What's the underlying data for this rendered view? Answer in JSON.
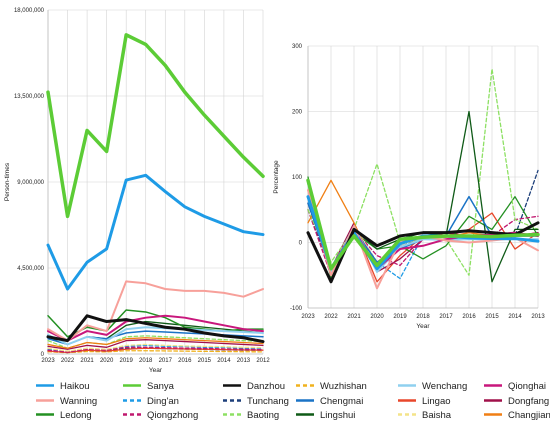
{
  "chart_data": [
    {
      "type": "line",
      "xlabel": "Year",
      "ylabel": "Person-times",
      "x": [
        "2023",
        "2022",
        "2021",
        "2020",
        "2019",
        "2018",
        "2017",
        "2016",
        "2015",
        "2014",
        "2013",
        "2012"
      ],
      "ylim": [
        0,
        18000000
      ],
      "yticks": [
        0,
        4500000,
        9000000,
        13500000,
        18000000
      ],
      "ytick_labels": [
        "0",
        "4,500,000",
        "9,000,000",
        "13,500,000",
        "18,000,000"
      ],
      "grid": true,
      "series": [
        {
          "name": "Haikou",
          "color": "#1e9be6",
          "dash": "solid",
          "width": 3,
          "values": [
            5700000,
            3400000,
            4800000,
            5500000,
            9100000,
            9350000,
            8500000,
            7700000,
            7200000,
            6800000,
            6400000,
            6250000
          ]
        },
        {
          "name": "Sanya",
          "color": "#5ccc36",
          "dash": "solid",
          "width": 3.5,
          "values": [
            13700000,
            7200000,
            11700000,
            10600000,
            16700000,
            16200000,
            15100000,
            13700000,
            12500000,
            11400000,
            10300000,
            9300000
          ]
        },
        {
          "name": "Danzhou",
          "color": "#111111",
          "dash": "solid",
          "width": 3,
          "values": [
            900000,
            700000,
            2000000,
            1700000,
            1800000,
            1600000,
            1400000,
            1300000,
            1100000,
            950000,
            850000,
            650000
          ]
        },
        {
          "name": "Wuzhishan",
          "color": "#f0b21e",
          "dash": "dash",
          "width": 1.3,
          "values": [
            120000,
            70000,
            130000,
            110000,
            170000,
            170000,
            160000,
            150000,
            140000,
            130000,
            120000,
            110000
          ]
        },
        {
          "name": "Wenchang",
          "color": "#8fd0ef",
          "dash": "solid",
          "width": 2,
          "values": [
            1000000,
            500000,
            900000,
            700000,
            1300000,
            1400000,
            1350000,
            1300000,
            1250000,
            1200000,
            1150000,
            1100000
          ]
        },
        {
          "name": "Qionghai",
          "color": "#c8177c",
          "dash": "solid",
          "width": 2,
          "values": [
            1200000,
            700000,
            1200000,
            1000000,
            1700000,
            1900000,
            2000000,
            1900000,
            1700000,
            1500000,
            1300000,
            1200000
          ]
        },
        {
          "name": "Wanning",
          "color": "#f7a09a",
          "dash": "solid",
          "width": 2,
          "values": [
            1300000,
            700000,
            1500000,
            1200000,
            3800000,
            3700000,
            3400000,
            3300000,
            3300000,
            3200000,
            3000000,
            3400000
          ]
        },
        {
          "name": "Ding'an",
          "color": "#1e9be6",
          "dash": "dash",
          "width": 1.3,
          "values": [
            250000,
            100000,
            250000,
            200000,
            400000,
            450000,
            400000,
            400000,
            350000,
            350000,
            300000,
            300000
          ]
        },
        {
          "name": "Tunchang",
          "color": "#1d3f7a",
          "dash": "dash",
          "width": 1.3,
          "values": [
            180000,
            80000,
            200000,
            150000,
            300000,
            300000,
            280000,
            260000,
            240000,
            220000,
            200000,
            200000
          ]
        },
        {
          "name": "Chengmai",
          "color": "#1a73c6",
          "dash": "solid",
          "width": 1.5,
          "values": [
            800000,
            500000,
            900000,
            800000,
            1100000,
            1200000,
            1150000,
            1100000,
            1050000,
            1000000,
            950000,
            900000
          ]
        },
        {
          "name": "Lingao",
          "color": "#e8472b",
          "dash": "solid",
          "width": 1.3,
          "values": [
            150000,
            80000,
            200000,
            150000,
            250000,
            300000,
            280000,
            260000,
            250000,
            230000,
            210000,
            200000
          ]
        },
        {
          "name": "Dongfang",
          "color": "#a0104a",
          "dash": "solid",
          "width": 1.3,
          "values": [
            400000,
            250000,
            450000,
            350000,
            700000,
            750000,
            700000,
            650000,
            600000,
            550000,
            500000,
            450000
          ]
        },
        {
          "name": "Ledong",
          "color": "#239022",
          "dash": "solid",
          "width": 1.5,
          "values": [
            2000000,
            900000,
            1400000,
            1200000,
            2300000,
            2200000,
            1900000,
            1400000,
            1300000,
            1200000,
            1300000,
            1300000
          ]
        },
        {
          "name": "Qiongzhong",
          "color": "#c0186f",
          "dash": "dash",
          "width": 1.3,
          "values": [
            200000,
            100000,
            250000,
            200000,
            350000,
            350000,
            330000,
            310000,
            290000,
            270000,
            250000,
            230000
          ]
        },
        {
          "name": "Baoting",
          "color": "#8de063",
          "dash": "dash",
          "width": 1.3,
          "values": [
            700000,
            300000,
            600000,
            500000,
            900000,
            950000,
            900000,
            850000,
            800000,
            750000,
            700000,
            650000
          ]
        },
        {
          "name": "Lingshui",
          "color": "#0f5a17",
          "dash": "solid",
          "width": 1.3,
          "values": [
            900000,
            500000,
            900000,
            800000,
            1500000,
            1700000,
            1600000,
            1500000,
            1400000,
            1300000,
            1200000,
            1100000
          ]
        },
        {
          "name": "Baisha",
          "color": "#f4e389",
          "dash": "dash",
          "width": 1.3,
          "values": [
            300000,
            150000,
            300000,
            250000,
            450000,
            500000,
            450000,
            420000,
            400000,
            380000,
            350000,
            330000
          ]
        },
        {
          "name": "Changjiang",
          "color": "#f07f14",
          "dash": "solid",
          "width": 1.3,
          "values": [
            500000,
            300000,
            600000,
            500000,
            800000,
            850000,
            800000,
            750000,
            700000,
            650000,
            600000,
            550000
          ]
        }
      ]
    },
    {
      "type": "line",
      "xlabel": "Year",
      "ylabel": "Percentage",
      "x": [
        "2023",
        "2022",
        "2021",
        "2020",
        "2019",
        "2018",
        "2017",
        "2016",
        "2015",
        "2014",
        "2013"
      ],
      "ylim": [
        -100,
        300
      ],
      "yticks": [
        -100,
        0,
        100,
        200,
        300
      ],
      "ytick_labels": [
        "-100",
        "0",
        "100",
        "200",
        "300"
      ],
      "grid": true,
      "series": [
        {
          "name": "Haikou",
          "color": "#1e9be6",
          "dash": "solid",
          "width": 3,
          "values": [
            70,
            -40,
            15,
            -40,
            -2,
            10,
            10,
            7,
            6,
            6,
            2
          ]
        },
        {
          "name": "Sanya",
          "color": "#5ccc36",
          "dash": "solid",
          "width": 3.5,
          "values": [
            95,
            -40,
            10,
            -35,
            5,
            8,
            10,
            10,
            9,
            11,
            12
          ]
        },
        {
          "name": "Danzhou",
          "color": "#111111",
          "dash": "solid",
          "width": 3,
          "values": [
            15,
            -60,
            20,
            -5,
            10,
            15,
            15,
            18,
            15,
            12,
            30
          ]
        },
        {
          "name": "Wuzhishan",
          "color": "#f0b21e",
          "dash": "dash",
          "width": 1.3,
          "values": [
            60,
            -45,
            20,
            -30,
            0,
            5,
            8,
            10,
            8,
            10,
            15
          ]
        },
        {
          "name": "Wenchang",
          "color": "#8fd0ef",
          "dash": "solid",
          "width": 2,
          "values": [
            90,
            -45,
            25,
            -45,
            -7,
            5,
            4,
            5,
            5,
            5,
            5
          ]
        },
        {
          "name": "Qionghai",
          "color": "#c8177c",
          "dash": "solid",
          "width": 2,
          "values": [
            70,
            -40,
            20,
            -40,
            -10,
            -5,
            5,
            10,
            12,
            15,
            10
          ]
        },
        {
          "name": "Wanning",
          "color": "#f7a09a",
          "dash": "solid",
          "width": 2,
          "values": [
            80,
            -50,
            25,
            -70,
            2,
            10,
            3,
            0,
            3,
            7,
            -12
          ]
        },
        {
          "name": "Ding'an",
          "color": "#1e9be6",
          "dash": "dash",
          "width": 1.3,
          "values": [
            60,
            -45,
            20,
            -30,
            -55,
            10,
            5,
            8,
            5,
            15,
            10
          ]
        },
        {
          "name": "Tunchang",
          "color": "#1d3f7a",
          "dash": "dash",
          "width": 1.3,
          "values": [
            50,
            -40,
            25,
            -30,
            -5,
            5,
            5,
            8,
            5,
            10,
            110
          ]
        },
        {
          "name": "Chengmai",
          "color": "#1a73c6",
          "dash": "solid",
          "width": 1.5,
          "values": [
            60,
            -40,
            20,
            -30,
            -10,
            5,
            10,
            70,
            10,
            10,
            10
          ]
        },
        {
          "name": "Lingao",
          "color": "#e8472b",
          "dash": "solid",
          "width": 1.3,
          "values": [
            70,
            -50,
            25,
            -60,
            -20,
            10,
            10,
            20,
            45,
            -10,
            15
          ]
        },
        {
          "name": "Dongfang",
          "color": "#a0104a",
          "dash": "solid",
          "width": 1.3,
          "values": [
            60,
            -40,
            30,
            -45,
            -25,
            5,
            15,
            10,
            10,
            10,
            15
          ]
        },
        {
          "name": "Ledong",
          "color": "#239022",
          "dash": "solid",
          "width": 1.3,
          "values": [
            100,
            -55,
            15,
            -10,
            -5,
            -25,
            -5,
            40,
            20,
            70,
            10
          ]
        },
        {
          "name": "Qiongzhong",
          "color": "#c0186f",
          "dash": "dash",
          "width": 1.3,
          "values": [
            50,
            -50,
            20,
            -20,
            -35,
            5,
            5,
            10,
            10,
            35,
            40
          ]
        },
        {
          "name": "Baoting",
          "color": "#8de063",
          "dash": "dash",
          "width": 1.3,
          "values": [
            50,
            -30,
            20,
            120,
            0,
            5,
            5,
            -50,
            265,
            35,
            20
          ]
        },
        {
          "name": "Lingshui",
          "color": "#0f5a17",
          "dash": "solid",
          "width": 1.3,
          "values": [
            80,
            -45,
            20,
            -10,
            5,
            15,
            10,
            200,
            -60,
            20,
            20
          ]
        },
        {
          "name": "Baisha",
          "color": "#f4e389",
          "dash": "dash",
          "width": 1.3,
          "values": [
            70,
            -40,
            25,
            -30,
            -5,
            10,
            5,
            15,
            10,
            15,
            10
          ]
        },
        {
          "name": "Changjiang",
          "color": "#f07f14",
          "dash": "solid",
          "width": 1.3,
          "values": [
            30,
            95,
            30,
            -45,
            5,
            10,
            8,
            15,
            10,
            10,
            10
          ]
        }
      ]
    }
  ],
  "legend": [
    {
      "name": "Haikou",
      "color": "#1e9be6",
      "dash": "solid"
    },
    {
      "name": "Sanya",
      "color": "#5ccc36",
      "dash": "solid"
    },
    {
      "name": "Danzhou",
      "color": "#111111",
      "dash": "solid"
    },
    {
      "name": "Wuzhishan",
      "color": "#f0b21e",
      "dash": "dash"
    },
    {
      "name": "Wenchang",
      "color": "#8fd0ef",
      "dash": "solid"
    },
    {
      "name": "Qionghai",
      "color": "#c8177c",
      "dash": "solid"
    },
    {
      "name": "Wanning",
      "color": "#f7a09a",
      "dash": "solid"
    },
    {
      "name": "Ding'an",
      "color": "#1e9be6",
      "dash": "dash"
    },
    {
      "name": "Tunchang",
      "color": "#1d3f7a",
      "dash": "dash"
    },
    {
      "name": "Chengmai",
      "color": "#1a73c6",
      "dash": "solid"
    },
    {
      "name": "Lingao",
      "color": "#e8472b",
      "dash": "solid"
    },
    {
      "name": "Dongfang",
      "color": "#a0104a",
      "dash": "solid"
    },
    {
      "name": "Ledong",
      "color": "#239022",
      "dash": "solid"
    },
    {
      "name": "Qiongzhong",
      "color": "#c0186f",
      "dash": "dash"
    },
    {
      "name": "Baoting",
      "color": "#8de063",
      "dash": "dash"
    },
    {
      "name": "Lingshui",
      "color": "#0f5a17",
      "dash": "solid"
    },
    {
      "name": "Baisha",
      "color": "#f4e389",
      "dash": "dash"
    },
    {
      "name": "Changjiang",
      "color": "#f07f14",
      "dash": "solid"
    }
  ],
  "legend_placement": "bottom"
}
